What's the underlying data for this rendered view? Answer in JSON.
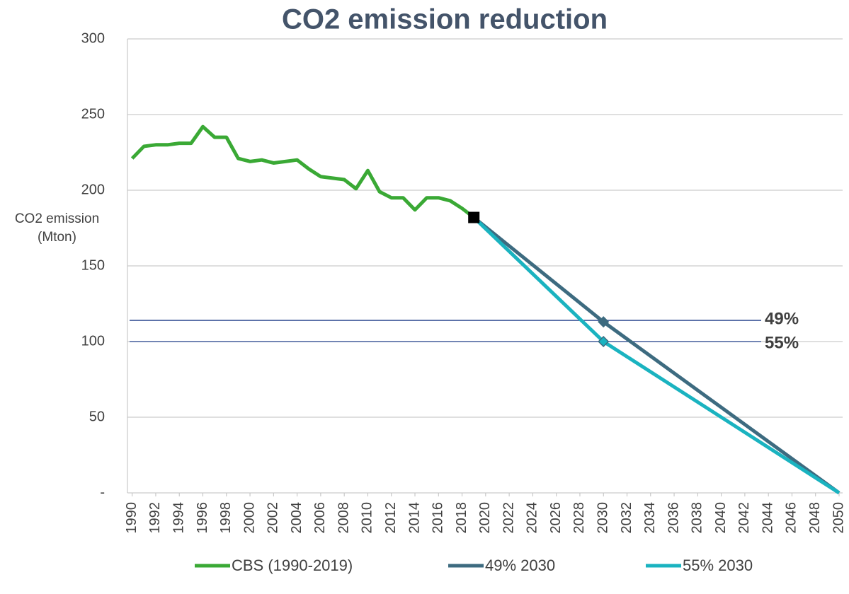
{
  "chart_data": {
    "type": "line",
    "title": "CO2 emission reduction",
    "ylabel": "CO2 emission (Mton)",
    "xlim": [
      1989.6,
      2050.3
    ],
    "xticks": [
      1990,
      1992,
      1994,
      1996,
      1998,
      2000,
      2002,
      2004,
      2006,
      2008,
      2010,
      2012,
      2014,
      2016,
      2018,
      2020,
      2022,
      2024,
      2026,
      2028,
      2030,
      2032,
      2034,
      2036,
      2038,
      2040,
      2042,
      2044,
      2046,
      2048,
      2050
    ],
    "ylim": [
      0,
      300
    ],
    "yticks": [
      {
        "value": 0,
        "label": "-"
      },
      50,
      100,
      150,
      200,
      250,
      300
    ],
    "grid": true,
    "series": [
      {
        "name": "CBS (1990-2019)",
        "color": "#3aa935",
        "marker_color": "#000000",
        "x": [
          1990,
          1991,
          1992,
          1993,
          1994,
          1995,
          1996,
          1997,
          1998,
          1999,
          2000,
          2001,
          2002,
          2003,
          2004,
          2005,
          2006,
          2007,
          2008,
          2009,
          2010,
          2011,
          2012,
          2013,
          2014,
          2015,
          2016,
          2017,
          2018,
          2019
        ],
        "values": [
          221,
          229,
          230,
          230,
          231,
          231,
          242,
          235,
          235,
          221,
          219,
          220,
          218,
          219,
          220,
          214,
          209,
          208,
          207,
          201,
          213,
          199,
          195,
          195,
          187,
          195,
          195,
          193,
          188,
          182
        ]
      },
      {
        "name": "49% 2030",
        "color": "#3d6b80",
        "x": [
          2019,
          2030,
          2050
        ],
        "values": [
          182,
          113,
          0
        ]
      },
      {
        "name": "55% 2030",
        "color": "#1ab3c0",
        "x": [
          2019,
          2030,
          2050
        ],
        "values": [
          182,
          100,
          0
        ]
      }
    ],
    "reference_lines": [
      {
        "value": 114,
        "label": "49%",
        "color": "#1f3c88"
      },
      {
        "value": 100,
        "label": "55%",
        "color": "#1f3c88"
      }
    ],
    "legend": "bottom"
  }
}
